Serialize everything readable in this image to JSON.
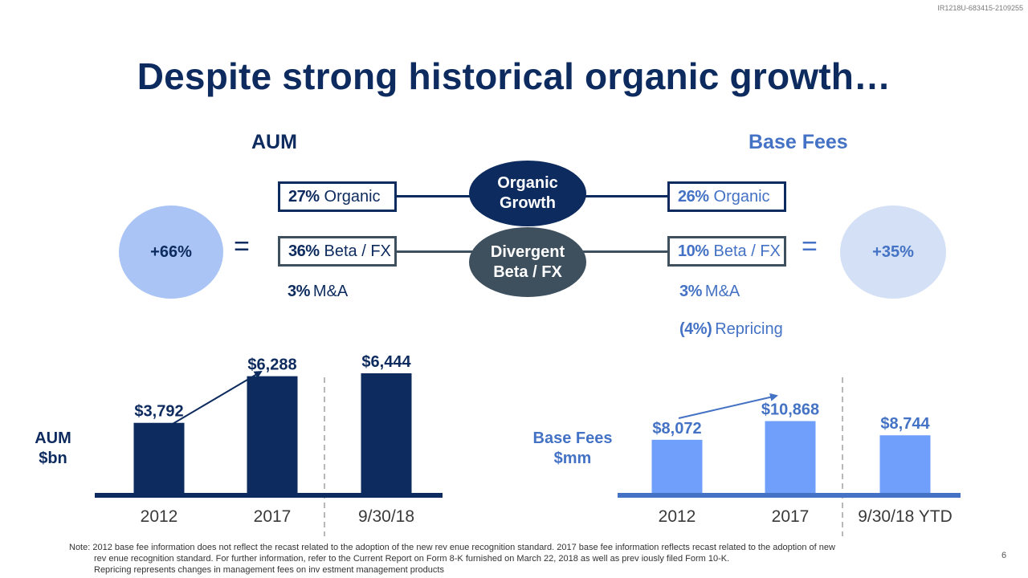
{
  "doc_id": "IR1218U-683415-2109255",
  "title": "Despite strong historical organic growth…",
  "headers": {
    "aum": "AUM",
    "fees": "Base Fees"
  },
  "aum_total": "+66%",
  "fees_total": "+35%",
  "equals": "=",
  "aum_components": {
    "organic": {
      "pct": "27%",
      "label": "Organic"
    },
    "beta": {
      "pct": "36%",
      "label": "Beta / FX"
    },
    "ma": {
      "pct": "3%",
      "label": "M&A"
    }
  },
  "fees_components": {
    "organic": {
      "pct": "26%",
      "label": "Organic"
    },
    "beta": {
      "pct": "10%",
      "label": "Beta / FX"
    },
    "ma": {
      "pct": "3%",
      "label": "M&A"
    },
    "repricing": {
      "pct": "(4%)",
      "label": "Repricing"
    }
  },
  "center": {
    "organic_l1": "Organic",
    "organic_l2": "Growth",
    "divergent_l1": "Divergent",
    "divergent_l2": "Beta / FX"
  },
  "ylabels": {
    "aum_l1": "AUM",
    "aum_l2": "$bn",
    "fees_l1": "Base Fees",
    "fees_l2": "$mm"
  },
  "colors": {
    "navy": "#0d2b5e",
    "blue": "#4472c4",
    "lightblue": "#6f9ffb",
    "slate": "#3e4f5e"
  },
  "chart_data": [
    {
      "type": "bar",
      "categories": [
        "2012",
        "2017",
        "9/30/18"
      ],
      "values": [
        3792,
        6288,
        6444
      ],
      "data_labels": [
        "$3,792",
        "$6,288",
        "$6,444"
      ],
      "ylim": [
        0,
        9000
      ]
    },
    {
      "type": "bar",
      "categories": [
        "2012",
        "2017",
        "9/30/18 YTD"
      ],
      "values": [
        8072,
        10868,
        8744
      ],
      "data_labels": [
        "$8,072",
        "$10,868",
        "$8,744"
      ],
      "ylim": [
        0,
        14500
      ]
    }
  ],
  "note": {
    "line1": "Note: 2012 base fee information does not reflect the recast related to the adoption of the new rev enue recognition standard. 2017 base fee information reflects recast related to the adoption of new",
    "line2": "rev enue recognition standard. For further information, refer to the Current Report on Form 8-K furnished on March 22, 2018 as well as prev iously filed Form 10-K.",
    "line3": "Repricing represents changes in management fees on inv estment management products"
  },
  "page_number": "6"
}
